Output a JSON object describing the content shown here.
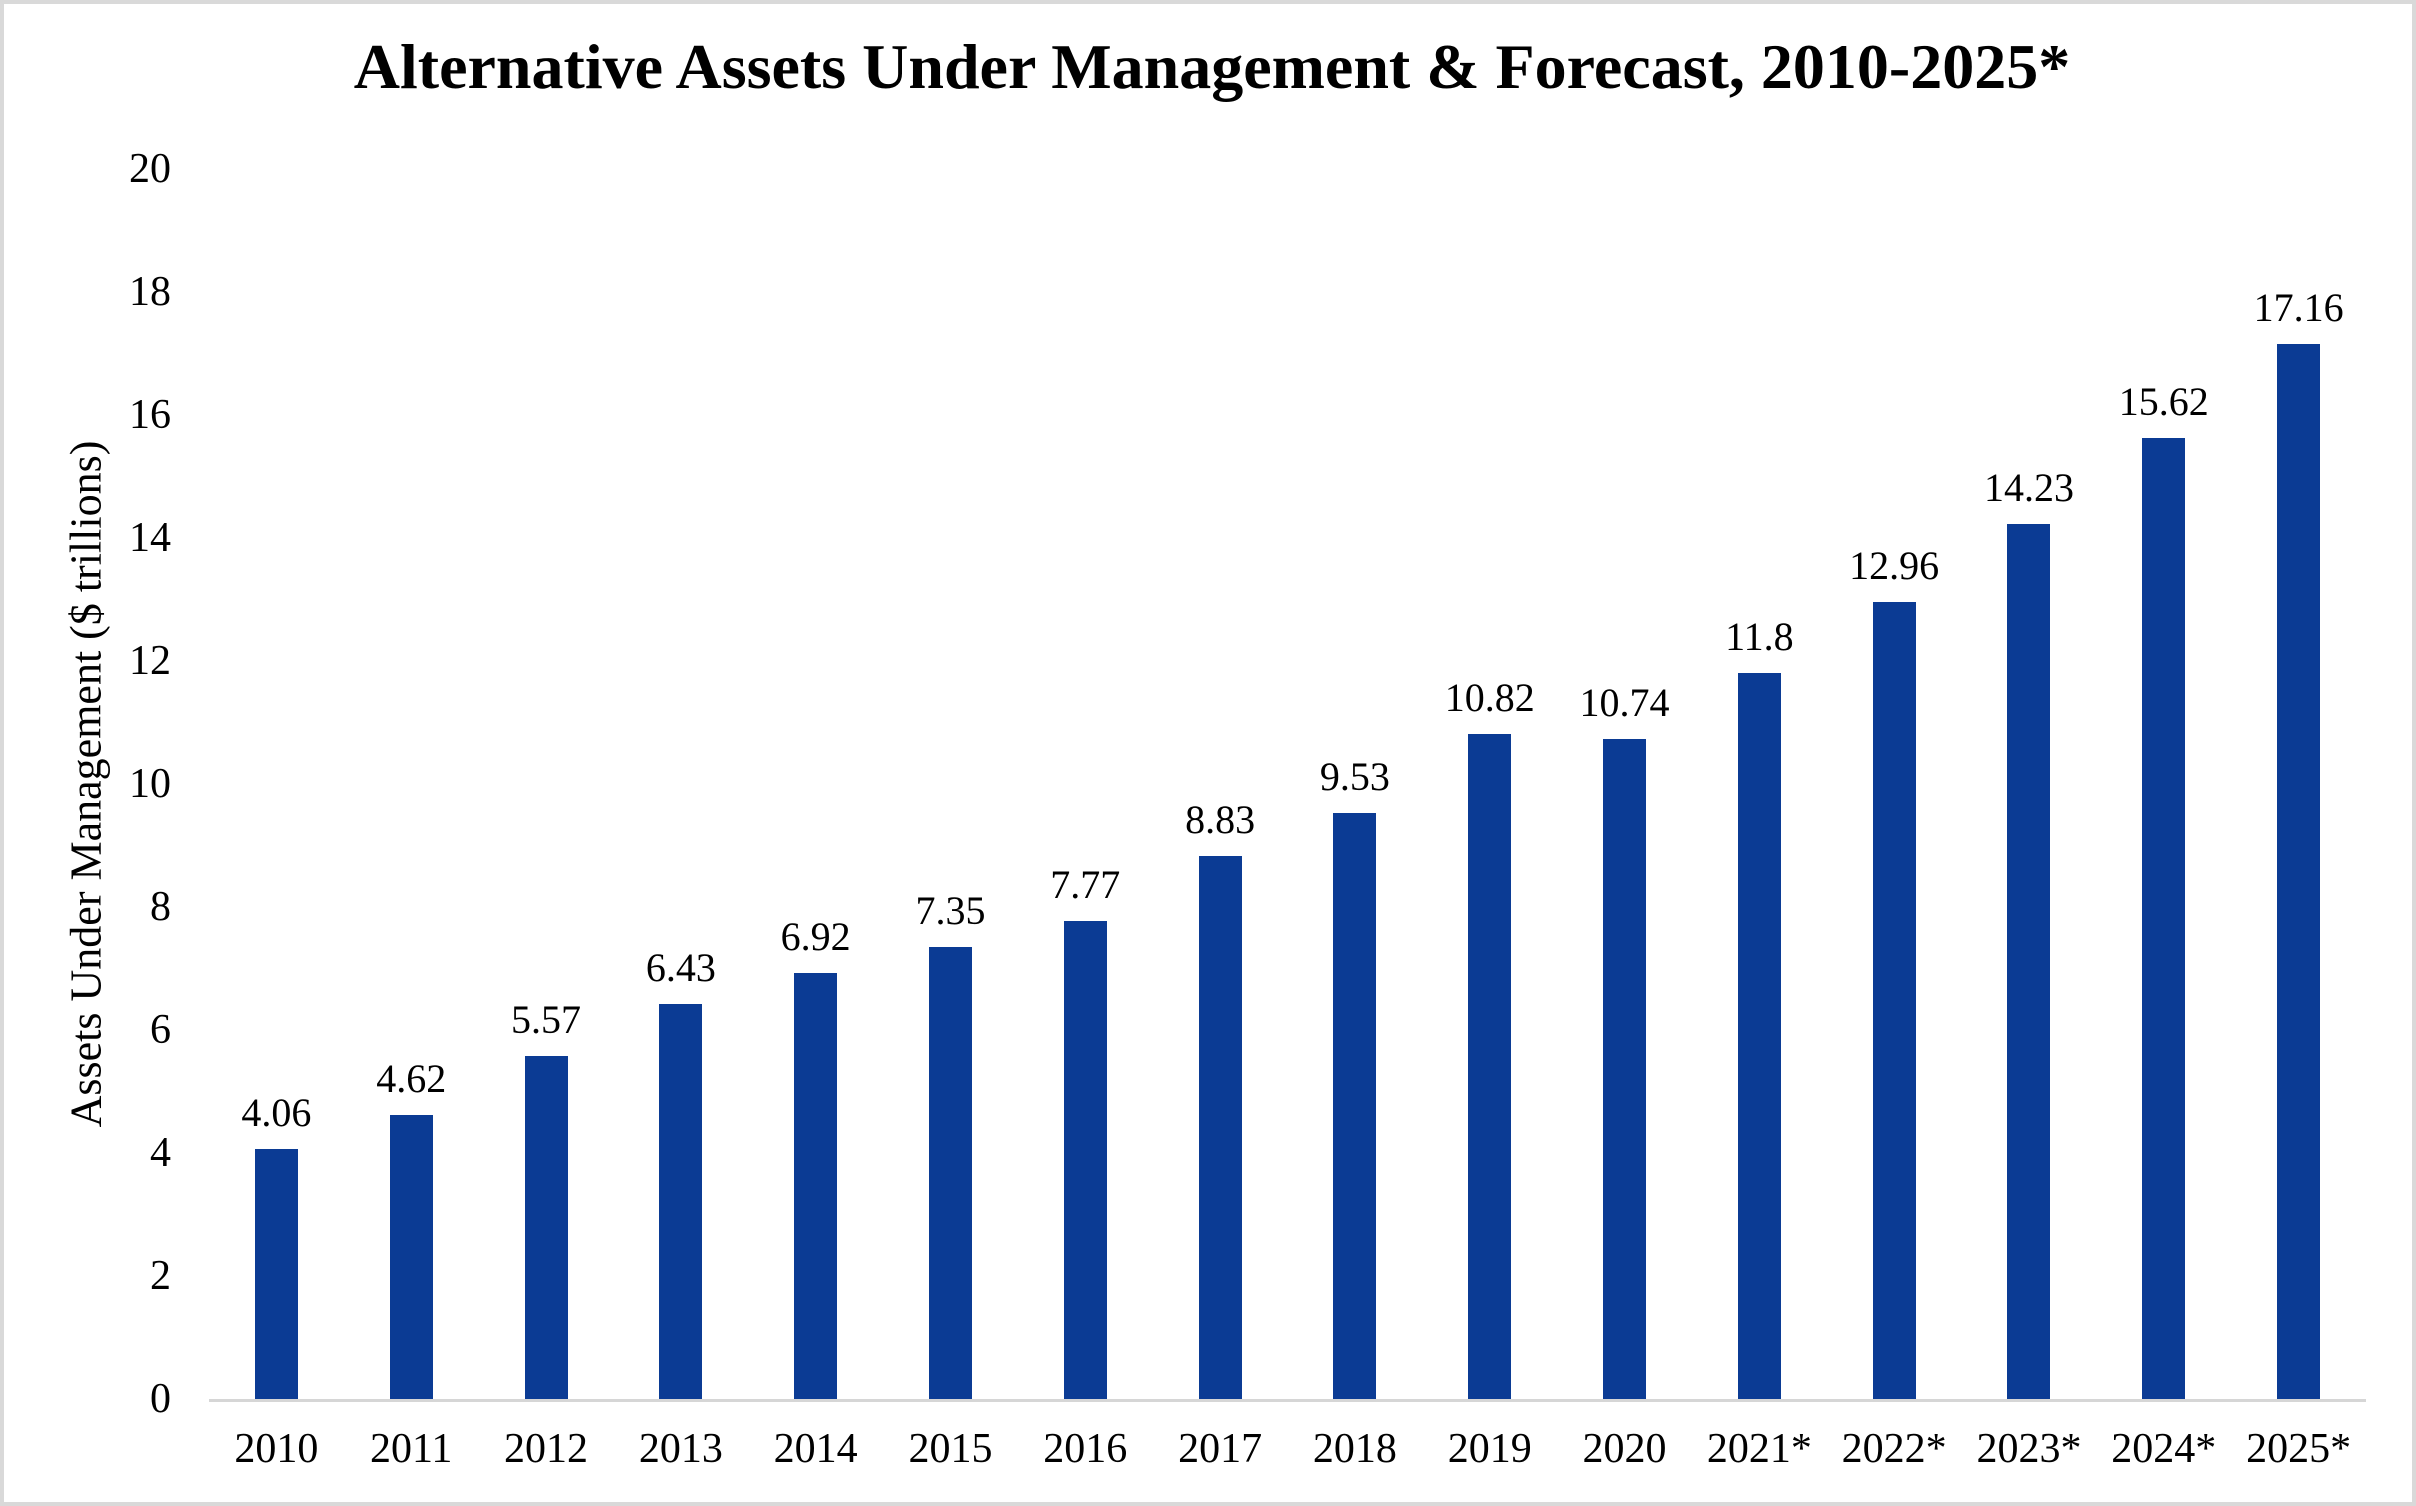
{
  "page": {
    "background_color": "#FFFFFF",
    "frame_border_color": "#D9D9D9"
  },
  "chart_data": {
    "type": "bar",
    "title": "Alternative Assets Under Management & Forecast, 2010-2025*",
    "xlabel": "",
    "ylabel": "Assets Under Management ($ trillions)",
    "categories": [
      "2010",
      "2011",
      "2012",
      "2013",
      "2014",
      "2015",
      "2016",
      "2017",
      "2018",
      "2019",
      "2020",
      "2021*",
      "2022*",
      "2023*",
      "2024*",
      "2025*"
    ],
    "values": [
      4.06,
      4.62,
      5.57,
      6.43,
      6.92,
      7.35,
      7.77,
      8.83,
      9.53,
      10.82,
      10.74,
      11.8,
      12.96,
      14.23,
      15.62,
      17.16
    ],
    "data_labels": [
      "4.06",
      "4.62",
      "5.57",
      "6.43",
      "6.92",
      "7.35",
      "7.77",
      "8.83",
      "9.53",
      "10.82",
      "10.74",
      "11.8",
      "12.96",
      "14.23",
      "15.62",
      "17.16"
    ],
    "ylim": [
      0,
      20
    ],
    "ytick_step": 2,
    "yticks": [
      0,
      2,
      4,
      6,
      8,
      10,
      12,
      14,
      16,
      18,
      20
    ],
    "grid": false,
    "legend": "none",
    "bar_color": "#0B3B94",
    "axis_line_color": "#D6D6D6",
    "text_color": "#000000"
  }
}
